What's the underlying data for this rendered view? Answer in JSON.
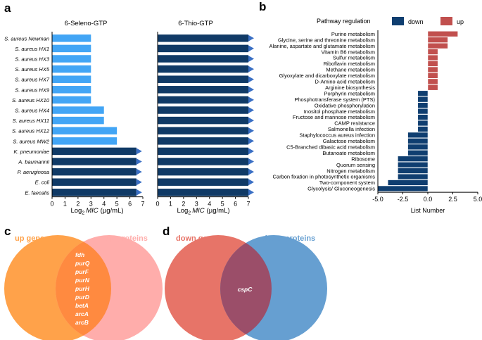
{
  "panel_letters": [
    "a",
    "b",
    "c",
    "d"
  ],
  "colors": {
    "light_blue": "#42a5f5",
    "dark_blue": "#103a66",
    "arrow_blue": "#3a6fc4",
    "up_red": "#c1504e",
    "down_navy": "#0f3e70",
    "venn_up_genes": "#ffa24a",
    "venn_up_proteins": "#ffadab",
    "venn_down_genes": "#e77468",
    "venn_down_proteins": "#669fd1"
  },
  "chart_data": [
    {
      "type": "bar",
      "orientation": "horizontal",
      "title": "6-Seleno-GTP",
      "xlabel_prefix": "Log",
      "xlabel_sub": "2",
      "xlabel_mic": "MIC",
      "xlabel_unit": "(µg/mL)",
      "xlim": [
        0,
        7
      ],
      "xticks": [
        "0",
        "1",
        "2",
        "3",
        "4",
        "5",
        "6",
        "7"
      ],
      "categories": [
        "S. aureus Newman",
        "S. aureus HX1",
        "S. aureus HX3",
        "S. aureus HX5",
        "S. aureus HX7",
        "S. aureus HX9",
        "S. aureus HX10",
        "S. aureus HX4",
        "S. aureus HX11",
        "S. aureus HX12",
        "S. aureus MW2",
        "K. pneumoniae",
        "A. baumannii",
        "P. aeruginosa",
        "E. coli",
        "E. faecalis"
      ],
      "values": [
        3,
        3,
        3,
        3,
        3,
        3,
        3,
        4,
        4,
        5,
        5,
        6.5,
        6.5,
        6.5,
        6.5,
        6.5
      ],
      "exceeds_range": [
        false,
        false,
        false,
        false,
        false,
        false,
        false,
        false,
        false,
        false,
        false,
        true,
        true,
        true,
        true,
        true
      ]
    },
    {
      "type": "bar",
      "orientation": "horizontal",
      "title": "6-Thio-GTP",
      "xlabel_prefix": "Log",
      "xlabel_sub": "2",
      "xlabel_mic": "MIC",
      "xlabel_unit": "(µg/mL)",
      "xlim": [
        0,
        7
      ],
      "xticks": [
        "0",
        "1",
        "2",
        "3",
        "4",
        "5",
        "6",
        "7"
      ],
      "categories": [
        "S. aureus Newman",
        "S. aureus HX1",
        "S. aureus HX3",
        "S. aureus HX5",
        "S. aureus HX7",
        "S. aureus HX9",
        "S. aureus HX10",
        "S. aureus HX4",
        "S. aureus HX11",
        "S. aureus HX12",
        "S. aureus MW2",
        "K. pneumoniae",
        "A. baumannii",
        "P. aeruginosa",
        "E. coli",
        "E. faecalis"
      ],
      "values": [
        7,
        7,
        7,
        7,
        7,
        7,
        7,
        7,
        7,
        7,
        7,
        7,
        7,
        7,
        7,
        7
      ],
      "exceeds_range": [
        true,
        true,
        true,
        true,
        true,
        true,
        true,
        true,
        true,
        true,
        true,
        true,
        true,
        true,
        true,
        true
      ]
    },
    {
      "type": "bar",
      "orientation": "horizontal",
      "legend_title": "Pathway regulation",
      "legend_placement": "top",
      "series": [
        {
          "name": "down"
        },
        {
          "name": "up"
        }
      ],
      "xlabel": "List Number",
      "xlim": [
        -5,
        5
      ],
      "xticks": [
        "-5.0",
        "-2.5",
        "0.0",
        "2.5",
        "5.0"
      ],
      "categories": [
        "Purine metabolism",
        "Glycine, serine and threonine metabolism",
        "Alanine, aspartate and glutamate metabolism",
        "Vitamin B6 metabolism",
        "Sulfur metabolism",
        "Riboflavin metabolism",
        "Methane metabolism",
        "Glyoxylate and dicarboxylate metabolism",
        "D-Amino acid metabolism",
        "Arginine biosynthesis",
        "Porphyrin metabolism",
        "Phosphotransferase system (PTS)",
        "Oxidative phosphorylation",
        "Inositol phosphate metabolism",
        "Fructose and mannose metabolism",
        "CAMP resistance",
        "Salmonella infection",
        "Staphylococcus aureus infection",
        "Galactose metabolism",
        "C5-Branched dibasic acid metabolism",
        "Butanoate metabolism",
        "Ribosome",
        "Quorum sensing",
        "Nitrogen metabolism",
        "Carbon fixation in photosynthetic organisms",
        "Two-component system",
        "Glycolysis/ Gluconeogenesis"
      ],
      "values": [
        3,
        2,
        2,
        1,
        1,
        1,
        1,
        1,
        1,
        1,
        -1,
        -1,
        -1,
        -1,
        -1,
        -1,
        -1,
        -2,
        -2,
        -2,
        -2,
        -3,
        -3,
        -3,
        -3,
        -4,
        -5
      ]
    }
  ],
  "venn": {
    "c": {
      "left_label": "up genes",
      "right_label": "up proteins",
      "shared": [
        "fdh",
        "purQ",
        "purF",
        "purN",
        "purH",
        "purD",
        "betA",
        "arcA",
        "arcB"
      ]
    },
    "d": {
      "left_label": "down genes",
      "right_label": "down proteins",
      "shared": [
        "cspC"
      ]
    }
  }
}
